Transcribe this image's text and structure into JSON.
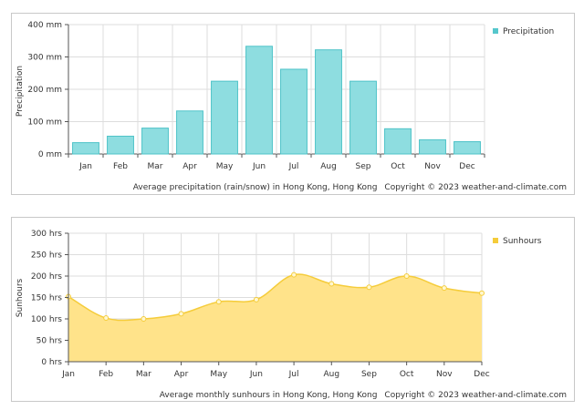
{
  "chart_data": [
    {
      "type": "bar",
      "categories": [
        "Jan",
        "Feb",
        "Mar",
        "Apr",
        "May",
        "Jun",
        "Jul",
        "Aug",
        "Sep",
        "Oct",
        "Nov",
        "Dec"
      ],
      "series": [
        {
          "name": "Precipitation",
          "values": [
            35,
            55,
            80,
            133,
            225,
            333,
            262,
            322,
            225,
            78,
            44,
            38
          ]
        }
      ],
      "ylabel": "Precipitation",
      "y_ticks": [
        "0 mm",
        "100 mm",
        "200 mm",
        "300 mm",
        "400 mm"
      ],
      "ylim": [
        0,
        400
      ],
      "caption": "Average precipitation (rain/snow) in Hong Kong, Hong Kong",
      "copyright": "Copyright © 2023  weather-and-climate.com",
      "legend_position": "top-right",
      "grid": true,
      "color": "#8edde0",
      "edge_color": "#4ec3c8"
    },
    {
      "type": "area",
      "categories": [
        "Jan",
        "Feb",
        "Mar",
        "Apr",
        "May",
        "Jun",
        "Jul",
        "Aug",
        "Sep",
        "Oct",
        "Nov",
        "Dec"
      ],
      "series": [
        {
          "name": "Sunhours",
          "values": [
            152,
            102,
            100,
            112,
            140,
            145,
            203,
            182,
            174,
            200,
            172,
            160
          ]
        }
      ],
      "ylabel": "Sunhours",
      "y_ticks": [
        "0 hrs",
        "50 hrs",
        "100 hrs",
        "150 hrs",
        "200 hrs",
        "250 hrs",
        "300 hrs"
      ],
      "ylim": [
        0,
        300
      ],
      "caption": "Average monthly sunhours in Hong Kong, Hong Kong",
      "copyright": "Copyright © 2023  weather-and-climate.com",
      "legend_position": "top-right",
      "grid": true,
      "color": "#ffe38a",
      "edge_color": "#f5cc3a"
    }
  ]
}
